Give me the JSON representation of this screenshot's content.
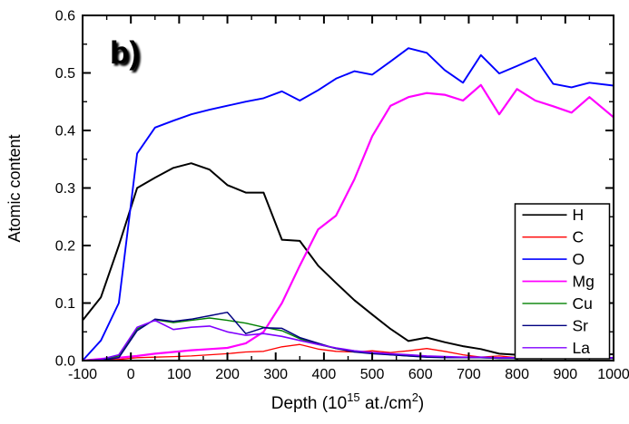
{
  "chart_data": {
    "type": "line",
    "panel_label": "b)",
    "title": "",
    "ylabel": "Atomic content",
    "xlabel": "Depth (10^15 at./cm^2)",
    "xlabel_parts": [
      {
        "text": "Depth (10"
      },
      {
        "text": "15",
        "sup": true
      },
      {
        "text": " at./cm"
      },
      {
        "text": "2",
        "sup": true
      },
      {
        "text": ")"
      }
    ],
    "xlim": [
      -100,
      1000
    ],
    "ylim": [
      0.0,
      0.6
    ],
    "x_major_ticks": [
      -100,
      0,
      100,
      200,
      300,
      400,
      500,
      600,
      700,
      800,
      900,
      1000
    ],
    "x_tick_labels": [
      "-100",
      "0",
      "100",
      "200",
      "300",
      "400",
      "500",
      "600",
      "700",
      "800",
      "900",
      "1000"
    ],
    "x_minor_step": 50,
    "y_major_ticks": [
      0.0,
      0.1,
      0.2,
      0.3,
      0.4,
      0.5,
      0.6
    ],
    "y_tick_labels": [
      "0.0",
      "0.1",
      "0.2",
      "0.3",
      "0.4",
      "0.5",
      "0.6"
    ],
    "y_minor_step": 0.05,
    "grid": false,
    "legend_position": "inside-bottom-right",
    "x": [
      -100,
      -62,
      -25,
      13,
      50,
      88,
      125,
      163,
      200,
      238,
      275,
      313,
      350,
      388,
      425,
      463,
      500,
      538,
      575,
      613,
      650,
      688,
      725,
      763,
      800,
      838,
      875,
      913,
      950,
      1000
    ],
    "series": [
      {
        "name": "H",
        "color": "#000000",
        "stroke_width": 2.0,
        "values": [
          0.07,
          0.11,
          0.2,
          0.3,
          0.318,
          0.335,
          0.343,
          0.332,
          0.305,
          0.292,
          0.292,
          0.21,
          0.208,
          0.165,
          0.135,
          0.105,
          0.08,
          0.055,
          0.034,
          0.04,
          0.032,
          0.025,
          0.02,
          0.012,
          0.01,
          0.011,
          0.01,
          0.011,
          0.01,
          0.011
        ]
      },
      {
        "name": "C",
        "color": "#ff0000",
        "stroke_width": 1.3,
        "values": [
          0.0,
          0.001,
          0.002,
          0.005,
          0.006,
          0.007,
          0.008,
          0.01,
          0.012,
          0.015,
          0.016,
          0.024,
          0.028,
          0.02,
          0.016,
          0.015,
          0.017,
          0.014,
          0.017,
          0.021,
          0.016,
          0.01,
          0.006,
          0.008,
          0.005,
          0.005,
          0.005,
          0.005,
          0.005,
          0.005
        ]
      },
      {
        "name": "O",
        "color": "#0000ff",
        "stroke_width": 1.9,
        "values": [
          0.0,
          0.035,
          0.1,
          0.36,
          0.405,
          0.417,
          0.428,
          0.436,
          0.443,
          0.45,
          0.456,
          0.468,
          0.452,
          0.47,
          0.49,
          0.503,
          0.497,
          0.52,
          0.543,
          0.535,
          0.505,
          0.483,
          0.531,
          0.499,
          0.512,
          0.526,
          0.481,
          0.475,
          0.483,
          0.478
        ]
      },
      {
        "name": "Mg",
        "color": "#ff00ff",
        "stroke_width": 2.2,
        "values": [
          0.0,
          0.003,
          0.005,
          0.008,
          0.012,
          0.015,
          0.018,
          0.02,
          0.022,
          0.03,
          0.05,
          0.1,
          0.165,
          0.228,
          0.252,
          0.315,
          0.39,
          0.443,
          0.458,
          0.465,
          0.462,
          0.452,
          0.479,
          0.428,
          0.472,
          0.452,
          0.442,
          0.431,
          0.458,
          0.423
        ]
      },
      {
        "name": "Cu",
        "color": "#008000",
        "stroke_width": 1.4,
        "values": [
          0.0,
          0.002,
          0.008,
          0.055,
          0.071,
          0.066,
          0.07,
          0.074,
          0.07,
          0.065,
          0.058,
          0.052,
          0.038,
          0.028,
          0.021,
          0.017,
          0.013,
          0.01,
          0.008,
          0.007,
          0.006,
          0.005,
          0.005,
          0.004,
          0.004,
          0.004,
          0.004,
          0.004,
          0.004,
          0.004
        ]
      },
      {
        "name": "Sr",
        "color": "#000080",
        "stroke_width": 1.5,
        "values": [
          0.0,
          0.001,
          0.005,
          0.052,
          0.072,
          0.068,
          0.072,
          0.078,
          0.084,
          0.047,
          0.057,
          0.056,
          0.04,
          0.03,
          0.021,
          0.015,
          0.012,
          0.01,
          0.008,
          0.006,
          0.005,
          0.005,
          0.005,
          0.004,
          0.004,
          0.004,
          0.004,
          0.004,
          0.004,
          0.004
        ]
      },
      {
        "name": "La",
        "color": "#8000ff",
        "stroke_width": 1.6,
        "values": [
          0.0,
          0.002,
          0.01,
          0.058,
          0.07,
          0.054,
          0.058,
          0.06,
          0.05,
          0.044,
          0.047,
          0.042,
          0.035,
          0.028,
          0.022,
          0.017,
          0.014,
          0.012,
          0.01,
          0.008,
          0.007,
          0.006,
          0.006,
          0.005,
          0.005,
          0.005,
          0.005,
          0.005,
          0.005,
          0.005
        ]
      }
    ]
  }
}
